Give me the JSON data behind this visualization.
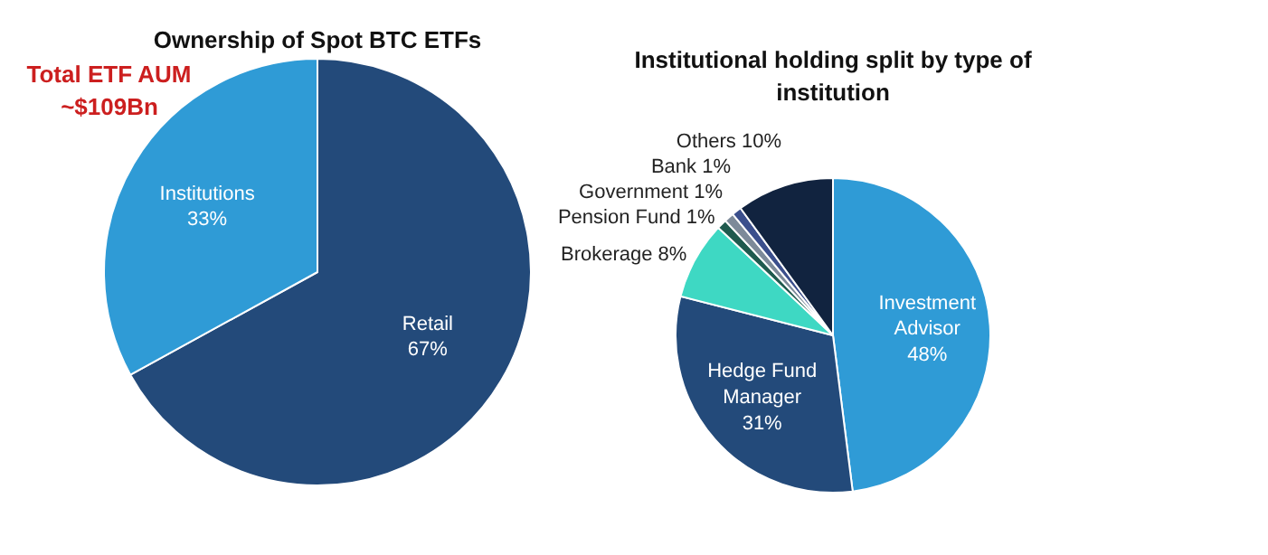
{
  "chart_data": [
    {
      "type": "pie",
      "title": "Ownership of Spot BTC ETFs",
      "categories": [
        "Retail",
        "Institutions"
      ],
      "values": [
        67,
        33
      ],
      "value_labels": [
        "67%",
        "33%"
      ],
      "colors": [
        "#234a7a",
        "#2f9bd6"
      ],
      "annotations": [
        "Total ETF AUM\n~$109Bn"
      ]
    },
    {
      "type": "pie",
      "title": "Institutional holding split by type of\ninstitution",
      "categories": [
        "Investment Advisor",
        "Hedge Fund Manager",
        "Brokerage",
        "Pension Fund",
        "Government",
        "Bank",
        "Others"
      ],
      "values": [
        48,
        31,
        8,
        1,
        1,
        1,
        10
      ],
      "value_labels": [
        "48%",
        "31%",
        "8%",
        "1%",
        "1%",
        "1%",
        "10%"
      ],
      "colors": [
        "#2f9bd6",
        "#234a7a",
        "#3ed8c3",
        "#1f5a4e",
        "#7d8a99",
        "#3b4f8c",
        "#11233f"
      ]
    }
  ]
}
